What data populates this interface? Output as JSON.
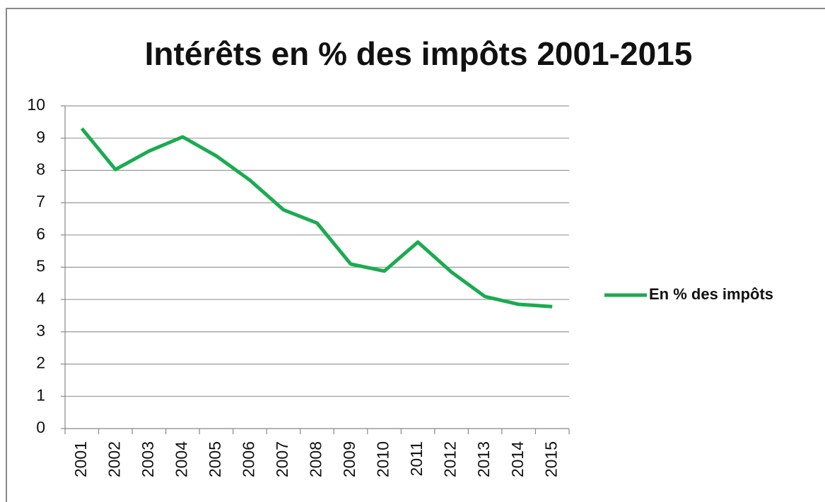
{
  "chart_data": {
    "type": "line",
    "title": "Intérêts en % des impôts 2001-2015",
    "categories": [
      "2001",
      "2002",
      "2003",
      "2004",
      "2005",
      "2006",
      "2007",
      "2008",
      "2009",
      "2010",
      "2011",
      "2012",
      "2013",
      "2014",
      "2015"
    ],
    "series": [
      {
        "name": "En % des impôts",
        "color": "#1aab50",
        "values": [
          9.3,
          8.03,
          8.6,
          9.04,
          8.45,
          7.7,
          6.78,
          6.37,
          5.1,
          4.88,
          5.78,
          4.85,
          4.09,
          3.85,
          3.78
        ]
      }
    ],
    "ylim": [
      0,
      10
    ],
    "yticks": [
      0,
      1,
      2,
      3,
      4,
      5,
      6,
      7,
      8,
      9,
      10
    ],
    "grid": true,
    "legend": "right"
  }
}
